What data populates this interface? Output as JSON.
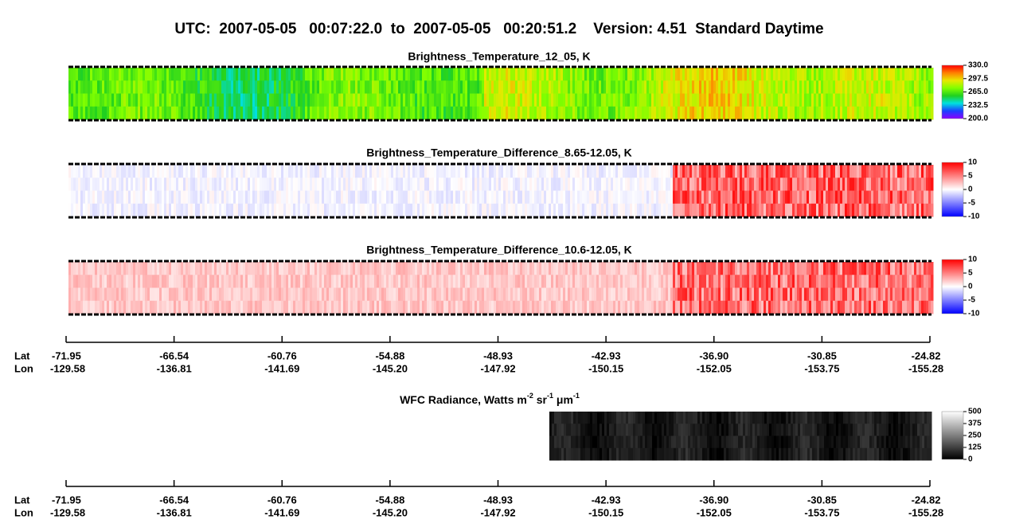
{
  "title": "UTC:  2007-05-05   00:07:22.0  to  2007-05-05   00:20:51.2    Version: 4.51  Standard Daytime",
  "chart_data": [
    {
      "type": "image",
      "title": "Brightness_Temperature_12_05, K",
      "clim": [
        200,
        330
      ],
      "cticks": [
        {
          "value": 200,
          "label": "200.0"
        },
        {
          "value": 232.5,
          "label": "232.5"
        },
        {
          "value": 265,
          "label": "265.0"
        },
        {
          "value": 297.5,
          "label": "297.5"
        },
        {
          "value": 330,
          "label": "330.0"
        }
      ],
      "colors": [
        "#8a00ff",
        "#1a40ff",
        "#00e0e0",
        "#20d020",
        "#80ff00",
        "#e8e800",
        "#ff8000",
        "#ff0000"
      ]
    },
    {
      "type": "image",
      "title": "Brightness_Temperature_Difference_8.65-12.05, K",
      "clim": [
        -10,
        10
      ],
      "cticks": [
        -10,
        -5,
        0,
        5,
        10
      ],
      "colors": [
        "#0000ff",
        "#8080ff",
        "#ffffff",
        "#ff8080",
        "#ff0000"
      ]
    },
    {
      "type": "image",
      "title": "Brightness_Temperature_Difference_10.6-12.05, K",
      "clim": [
        -10,
        10
      ],
      "cticks": [
        -10,
        -5,
        0,
        5,
        10
      ],
      "colors": [
        "#0000ff",
        "#8080ff",
        "#ffffff",
        "#ff8080",
        "#ff0000"
      ]
    },
    {
      "type": "image",
      "title_parts": [
        "WFC Radiance, Watts m",
        "-2",
        " sr",
        "-1",
        " μm",
        "-1"
      ],
      "clim": [
        0,
        500
      ],
      "cticks": [
        0,
        125,
        250,
        375,
        500
      ],
      "colors": [
        "#000000",
        "#ffffff"
      ]
    }
  ],
  "axes": [
    {
      "rows": [
        "Lat",
        "Lon"
      ],
      "lat": [
        "-71.95",
        "-66.54",
        "-60.76",
        "-54.88",
        "-48.93",
        "-42.93",
        "-36.90",
        "-30.85",
        "-24.82"
      ],
      "lon": [
        "-129.58",
        "-136.81",
        "-141.69",
        "-145.20",
        "-147.92",
        "-150.15",
        "-152.05",
        "-153.75",
        "-155.28"
      ]
    },
    {
      "rows": [
        "Lat",
        "Lon"
      ],
      "lat": [
        "-71.95",
        "-66.54",
        "-60.76",
        "-54.88",
        "-48.93",
        "-42.93",
        "-36.90",
        "-30.85",
        "-24.82"
      ],
      "lon": [
        "-129.58",
        "-136.81",
        "-141.69",
        "-145.20",
        "-147.92",
        "-150.15",
        "-152.05",
        "-153.75",
        "-155.28"
      ]
    }
  ]
}
